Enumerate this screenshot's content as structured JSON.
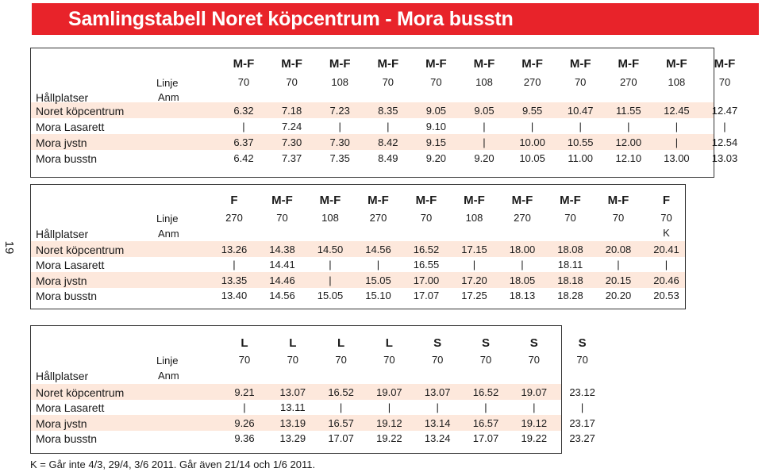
{
  "title": "Samlingstabell Noret köpcentrum - Mora busstn",
  "page_number": "19",
  "labels": {
    "linje": "Linje",
    "hallplatser": "Hållplatser",
    "anm": "Anm"
  },
  "stops": [
    "Noret köpcentrum",
    "Mora Lasarett",
    "Mora jvstn",
    "Mora busstn"
  ],
  "tables": [
    {
      "days": [
        "M-F",
        "M-F",
        "M-F",
        "M-F",
        "M-F",
        "M-F",
        "M-F",
        "M-F",
        "M-F",
        "M-F",
        "M-F"
      ],
      "lines": [
        "70",
        "70",
        "108",
        "70",
        "70",
        "108",
        "270",
        "70",
        "270",
        "108",
        "70"
      ],
      "anm": [
        "",
        "",
        "",
        "",
        "",
        "",
        "",
        "",
        "",
        "",
        ""
      ],
      "rows": [
        [
          "6.32",
          "7.18",
          "7.23",
          "8.35",
          "9.05",
          "9.05",
          "9.55",
          "10.47",
          "11.55",
          "12.45",
          "12.47"
        ],
        [
          "|",
          "7.24",
          "|",
          "|",
          "9.10",
          "|",
          "|",
          "|",
          "|",
          "|",
          "|"
        ],
        [
          "6.37",
          "7.30",
          "7.30",
          "8.42",
          "9.15",
          "|",
          "10.00",
          "10.55",
          "12.00",
          "|",
          "12.54"
        ],
        [
          "6.42",
          "7.37",
          "7.35",
          "8.49",
          "9.20",
          "9.20",
          "10.05",
          "11.00",
          "12.10",
          "13.00",
          "13.03"
        ]
      ]
    },
    {
      "days": [
        "F",
        "M-F",
        "M-F",
        "M-F",
        "M-F",
        "M-F",
        "M-F",
        "M-F",
        "M-F",
        "F"
      ],
      "lines": [
        "270",
        "70",
        "108",
        "270",
        "70",
        "108",
        "270",
        "70",
        "70",
        "70"
      ],
      "anm": [
        "",
        "",
        "",
        "",
        "",
        "",
        "",
        "",
        "",
        "K"
      ],
      "rows": [
        [
          "13.26",
          "14.38",
          "14.50",
          "14.56",
          "16.52",
          "17.15",
          "18.00",
          "18.08",
          "20.08",
          "20.41"
        ],
        [
          "|",
          "14.41",
          "|",
          "|",
          "16.55",
          "|",
          "|",
          "18.11",
          "|",
          "|"
        ],
        [
          "13.35",
          "14.46",
          "|",
          "15.05",
          "17.00",
          "17.20",
          "18.05",
          "18.18",
          "20.15",
          "20.46"
        ],
        [
          "13.40",
          "14.56",
          "15.05",
          "15.10",
          "17.07",
          "17.25",
          "18.13",
          "18.28",
          "20.20",
          "20.53"
        ]
      ]
    },
    {
      "days": [
        "L",
        "L",
        "L",
        "L",
        "S",
        "S",
        "S",
        "S"
      ],
      "lines": [
        "70",
        "70",
        "70",
        "70",
        "70",
        "70",
        "70",
        "70"
      ],
      "anm": [
        "",
        "",
        "",
        "",
        "",
        "",
        "",
        ""
      ],
      "rows": [
        [
          "9.21",
          "13.07",
          "16.52",
          "19.07",
          "13.07",
          "16.52",
          "19.07",
          "23.12"
        ],
        [
          "|",
          "13.11",
          "|",
          "|",
          "|",
          "|",
          "|",
          "|"
        ],
        [
          "9.26",
          "13.19",
          "16.57",
          "19.12",
          "13.14",
          "16.57",
          "19.12",
          "23.17"
        ],
        [
          "9.36",
          "13.29",
          "17.07",
          "19.22",
          "13.24",
          "17.07",
          "19.22",
          "23.27"
        ]
      ]
    }
  ],
  "footnote": "K = Går inte 4/3, 29/4, 3/6 2011. Går även 21/14 och 1/6 2011.",
  "colors": {
    "title_bar": "#e8232a",
    "row_band": "#fde8dc",
    "border": "#333333"
  }
}
